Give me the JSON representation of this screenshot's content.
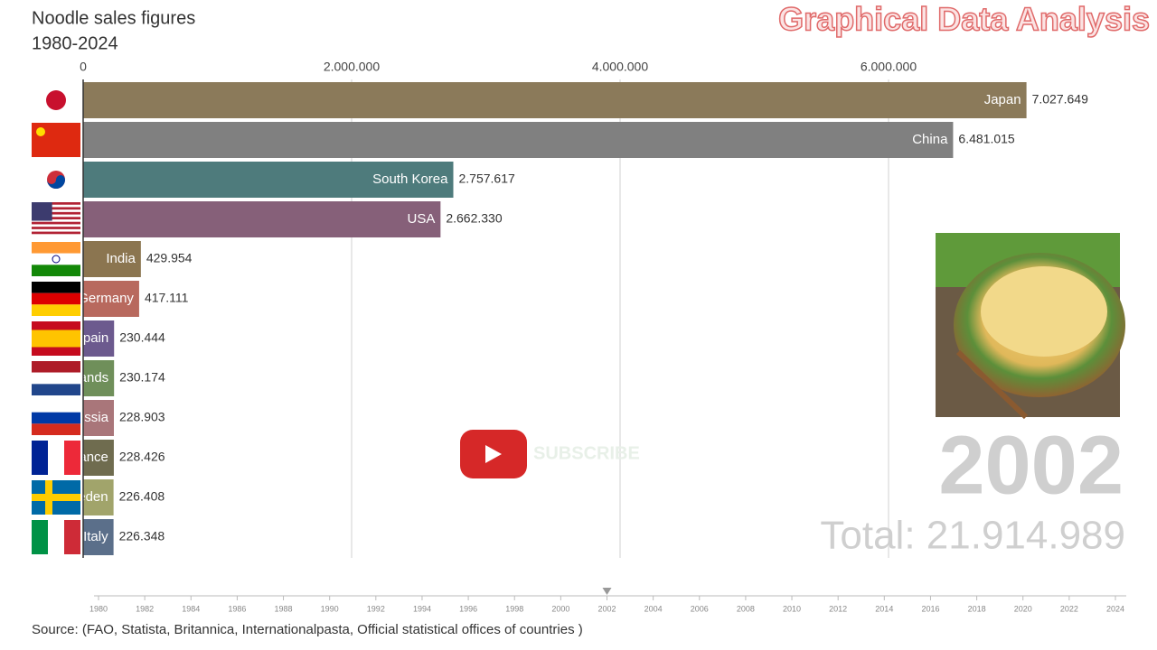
{
  "chart_data": {
    "type": "bar",
    "title": "Noodle sales figures",
    "subtitle": "1980-2024",
    "watermark": "Graphical Data Analysis",
    "categories": [
      "Japan",
      "China",
      "South Korea",
      "USA",
      "India",
      "Germany",
      "Spain",
      "Netherlands",
      "Russia",
      "France",
      "Sweden",
      "Italy"
    ],
    "values": [
      7027649,
      6481015,
      2757617,
      2662330,
      429954,
      417111,
      230444,
      230174,
      228903,
      228426,
      226408,
      226348
    ],
    "value_labels": [
      "7.027.649",
      "6.481.015",
      "2.757.617",
      "2.662.330",
      "429.954",
      "417.111",
      "230.444",
      "230.174",
      "228.903",
      "228.426",
      "226.408",
      "226.348"
    ],
    "colors": [
      "#8b7a5a",
      "#808080",
      "#4e7b7c",
      "#866079",
      "#8b7550",
      "#b8695e",
      "#6c5a8e",
      "#6f8f5a",
      "#a9767a",
      "#6f6c4f",
      "#a1a46b",
      "#5b6f8a"
    ],
    "xlim": [
      0,
      8000000
    ],
    "xticks": [
      0,
      {
        "value": 2000000,
        "label": "2.000.000"
      },
      {
        "value": 4000000,
        "label": "4.000.000"
      },
      {
        "value": 6000000,
        "label": "6.000.000"
      }
    ],
    "grid": true,
    "year": 2002,
    "total": 21914989,
    "total_label": "Total: 21.914.989",
    "timeline_ticks": [
      1980,
      1982,
      1984,
      1986,
      1988,
      1990,
      1992,
      1994,
      1996,
      1998,
      2000,
      2002,
      2004,
      2006,
      2008,
      2010,
      2012,
      2014,
      2016,
      2018,
      2020,
      2022,
      2024
    ],
    "subscribe": "SUBSCRIBE",
    "source": "Source: (FAO, Statista, Britannica, Internationalpasta, Official statistical offices of countries )"
  }
}
